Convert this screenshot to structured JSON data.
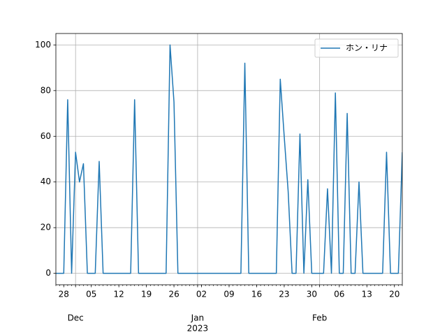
{
  "chart_data": {
    "type": "line",
    "x": [
      "2022-11-26",
      "2022-11-27",
      "2022-11-28",
      "2022-11-29",
      "2022-11-30",
      "2022-12-01",
      "2022-12-02",
      "2022-12-03",
      "2022-12-04",
      "2022-12-05",
      "2022-12-06",
      "2022-12-07",
      "2022-12-08",
      "2022-12-09",
      "2022-12-10",
      "2022-12-11",
      "2022-12-12",
      "2022-12-13",
      "2022-12-14",
      "2022-12-15",
      "2022-12-16",
      "2022-12-17",
      "2022-12-18",
      "2022-12-19",
      "2022-12-20",
      "2022-12-21",
      "2022-12-22",
      "2022-12-23",
      "2022-12-24",
      "2022-12-25",
      "2022-12-26",
      "2022-12-27",
      "2022-12-28",
      "2022-12-29",
      "2022-12-30",
      "2022-12-31",
      "2023-01-01",
      "2023-01-02",
      "2023-01-03",
      "2023-01-04",
      "2023-01-05",
      "2023-01-06",
      "2023-01-07",
      "2023-01-08",
      "2023-01-09",
      "2023-01-10",
      "2023-01-11",
      "2023-01-12",
      "2023-01-13",
      "2023-01-14",
      "2023-01-15",
      "2023-01-16",
      "2023-01-17",
      "2023-01-18",
      "2023-01-19",
      "2023-01-20",
      "2023-01-21",
      "2023-01-22",
      "2023-01-23",
      "2023-01-24",
      "2023-01-25",
      "2023-01-26",
      "2023-01-27",
      "2023-01-28",
      "2023-01-29",
      "2023-01-30",
      "2023-01-31",
      "2023-02-01",
      "2023-02-02",
      "2023-02-03",
      "2023-02-04",
      "2023-02-05",
      "2023-02-06",
      "2023-02-07",
      "2023-02-08",
      "2023-02-09",
      "2023-02-10",
      "2023-02-11",
      "2023-02-12",
      "2023-02-13",
      "2023-02-14",
      "2023-02-15",
      "2023-02-16",
      "2023-02-17",
      "2023-02-18",
      "2023-02-19",
      "2023-02-20",
      "2023-02-21",
      "2023-02-22"
    ],
    "series": [
      {
        "name": "ホン・リナ",
        "color": "#1f77b4",
        "values": [
          0,
          0,
          0,
          76,
          0,
          53,
          40,
          48,
          0,
          0,
          0,
          49,
          0,
          0,
          0,
          0,
          0,
          0,
          0,
          0,
          76,
          0,
          0,
          0,
          0,
          0,
          0,
          0,
          0,
          100,
          75,
          0,
          0,
          0,
          0,
          0,
          0,
          0,
          0,
          0,
          0,
          0,
          0,
          0,
          0,
          0,
          0,
          0,
          92,
          0,
          0,
          0,
          0,
          0,
          0,
          0,
          0,
          85,
          60,
          36,
          0,
          0,
          61,
          0,
          41,
          0,
          0,
          0,
          0,
          37,
          0,
          79,
          0,
          0,
          70,
          0,
          0,
          40,
          0,
          0,
          0,
          0,
          0,
          0,
          53,
          0,
          0,
          0,
          53
        ]
      }
    ],
    "xlim": [
      "2022-11-26",
      "2023-02-22"
    ],
    "xticks": [
      {
        "value": "2022-11-28",
        "label": "28"
      },
      {
        "value": "2022-12-05",
        "label": "05"
      },
      {
        "value": "2022-12-12",
        "label": "12"
      },
      {
        "value": "2022-12-19",
        "label": "19"
      },
      {
        "value": "2022-12-26",
        "label": "26"
      },
      {
        "value": "2023-01-02",
        "label": "02"
      },
      {
        "value": "2023-01-09",
        "label": "09"
      },
      {
        "value": "2023-01-16",
        "label": "16"
      },
      {
        "value": "2023-01-23",
        "label": "23"
      },
      {
        "value": "2023-01-30",
        "label": "30"
      },
      {
        "value": "2023-02-06",
        "label": "06"
      },
      {
        "value": "2023-02-13",
        "label": "13"
      },
      {
        "value": "2023-02-20",
        "label": "20"
      }
    ],
    "month_ticks": [
      {
        "value": "2022-12-01",
        "label": "Dec"
      },
      {
        "value": "2023-01-01",
        "label": "Jan"
      },
      {
        "value": "2023-02-01",
        "label": "Feb"
      }
    ],
    "year_label": {
      "value": "2023-01-01",
      "label": "2023"
    },
    "ylim": [
      -5,
      105
    ],
    "yticks": [
      0,
      20,
      40,
      60,
      80,
      100
    ],
    "grid": true,
    "legend": "upper right"
  }
}
